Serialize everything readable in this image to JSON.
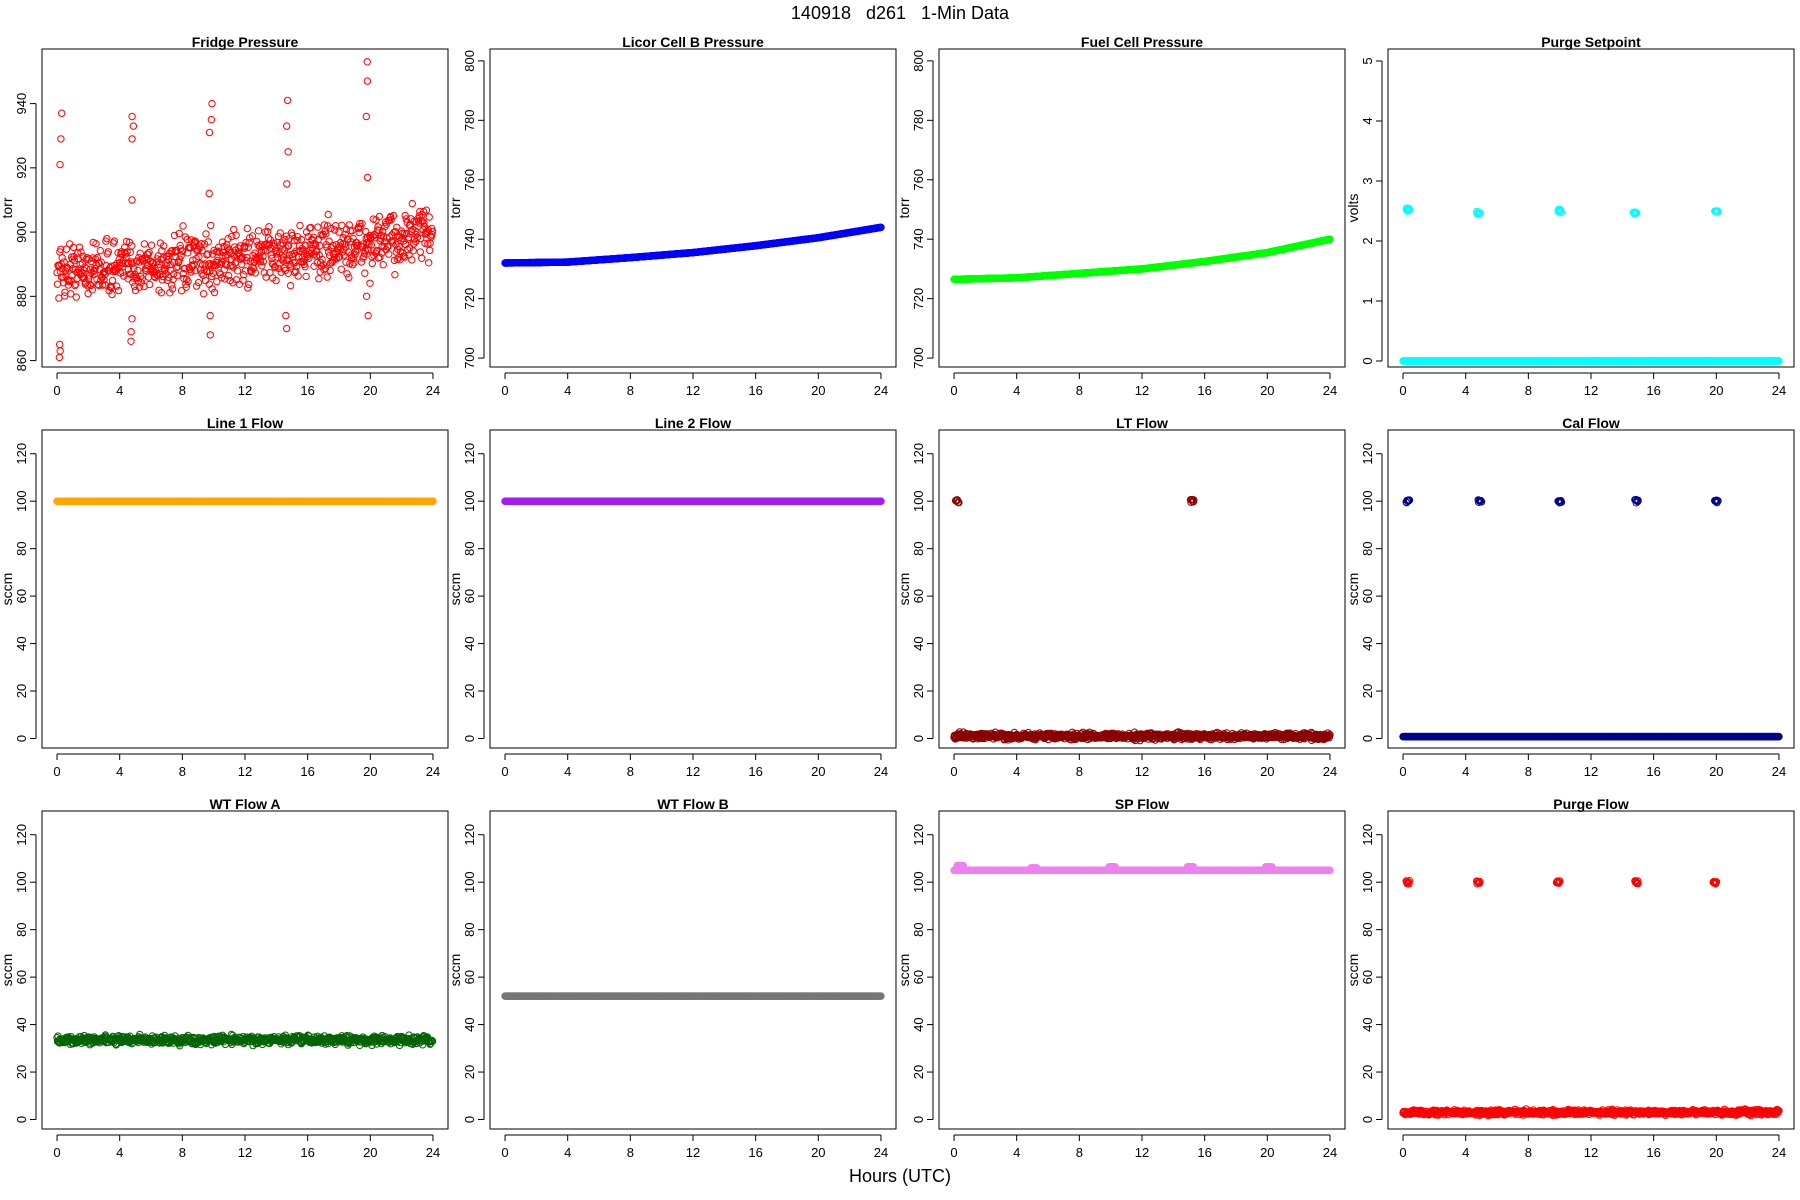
{
  "figure": {
    "title": "140918   d261   1-Min Data",
    "xlabel": "Hours (UTC)"
  },
  "chart_data": [
    {
      "type": "scatter",
      "title": "Fridge Pressure",
      "ylabel": "torr",
      "color": "#ff0000",
      "xlim": [
        0,
        24
      ],
      "ylim": [
        858,
        957
      ],
      "xticks": [
        0,
        4,
        8,
        12,
        16,
        20,
        24
      ],
      "yticks": [
        860,
        880,
        900,
        920,
        940
      ],
      "series": [
        {
          "pattern": "noisy",
          "base": [
            [
              0,
              888
            ],
            [
              4,
              889
            ],
            [
              8,
              890
            ],
            [
              12,
              892
            ],
            [
              16,
              894
            ],
            [
              20,
              896
            ],
            [
              24,
              900
            ]
          ],
          "noise": 6,
          "spikes": [
            {
              "x": 0.2,
              "vals": [
                921,
                929,
                937,
                861,
                863,
                865
              ]
            },
            {
              "x": 4.8,
              "vals": [
                929,
                933,
                936,
                866,
                869,
                873,
                910
              ]
            },
            {
              "x": 9.8,
              "vals": [
                931,
                935,
                940,
                868,
                874,
                912
              ]
            },
            {
              "x": 14.7,
              "vals": [
                925,
                933,
                941,
                870,
                874,
                915
              ]
            },
            {
              "x": 19.8,
              "vals": [
                917,
                936,
                947,
                953,
                874,
                880
              ]
            }
          ]
        }
      ]
    },
    {
      "type": "scatter",
      "title": "Licor Cell B Pressure",
      "ylabel": "torr",
      "color": "#0000ff",
      "xlim": [
        0,
        24
      ],
      "ylim": [
        697,
        804
      ],
      "xticks": [
        0,
        4,
        8,
        12,
        16,
        20,
        24
      ],
      "yticks": [
        700,
        720,
        740,
        760,
        780,
        800
      ],
      "series": [
        {
          "pattern": "smooth",
          "points": [
            [
              0,
              732
            ],
            [
              4,
              732.3
            ],
            [
              8,
              733.8
            ],
            [
              12,
              735.5
            ],
            [
              16,
              737.8
            ],
            [
              20,
              740.5
            ],
            [
              24,
              744
            ]
          ]
        }
      ]
    },
    {
      "type": "scatter",
      "title": "Fuel Cell Pressure",
      "ylabel": "torr",
      "color": "#00ff00",
      "xlim": [
        0,
        24
      ],
      "ylim": [
        697,
        804
      ],
      "xticks": [
        0,
        4,
        8,
        12,
        16,
        20,
        24
      ],
      "yticks": [
        700,
        720,
        740,
        760,
        780,
        800
      ],
      "series": [
        {
          "pattern": "smooth",
          "points": [
            [
              0,
              726.5
            ],
            [
              4,
              727
            ],
            [
              8,
              728.5
            ],
            [
              12,
              730
            ],
            [
              16,
              732.5
            ],
            [
              20,
              735.5
            ],
            [
              24,
              740
            ]
          ]
        }
      ]
    },
    {
      "type": "scatter",
      "title": "Purge Setpoint",
      "ylabel": "volts",
      "color": "#00ffff",
      "xlim": [
        0,
        24
      ],
      "ylim": [
        -0.1,
        5.2
      ],
      "xticks": [
        0,
        4,
        8,
        12,
        16,
        20,
        24
      ],
      "yticks": [
        0,
        1,
        2,
        3,
        4,
        5
      ],
      "series": [
        {
          "pattern": "baseline",
          "value": 0,
          "bursts": [
            {
              "x": 0.2,
              "y": 2.52
            },
            {
              "x": 4.7,
              "y": 2.47
            },
            {
              "x": 9.9,
              "y": 2.5
            },
            {
              "x": 14.7,
              "y": 2.46
            },
            {
              "x": 19.9,
              "y": 2.48
            }
          ]
        }
      ]
    },
    {
      "type": "scatter",
      "title": "Line 1 Flow",
      "ylabel": "sccm",
      "color": "#ffa500",
      "xlim": [
        0,
        24
      ],
      "ylim": [
        -4,
        130
      ],
      "xticks": [
        0,
        4,
        8,
        12,
        16,
        20,
        24
      ],
      "yticks": [
        0,
        20,
        40,
        60,
        80,
        100,
        120
      ],
      "series": [
        {
          "pattern": "flat",
          "value": 100
        }
      ]
    },
    {
      "type": "scatter",
      "title": "Line 2 Flow",
      "ylabel": "sccm",
      "color": "#a020f0",
      "xlim": [
        0,
        24
      ],
      "ylim": [
        -4,
        130
      ],
      "xticks": [
        0,
        4,
        8,
        12,
        16,
        20,
        24
      ],
      "yticks": [
        0,
        20,
        40,
        60,
        80,
        100,
        120
      ],
      "series": [
        {
          "pattern": "flat",
          "value": 100
        }
      ]
    },
    {
      "type": "scatter",
      "title": "LT Flow",
      "ylabel": "sccm",
      "color": "#8b0000",
      "xlim": [
        0,
        24
      ],
      "ylim": [
        -4,
        130
      ],
      "xticks": [
        0,
        4,
        8,
        12,
        16,
        20,
        24
      ],
      "yticks": [
        0,
        20,
        40,
        60,
        80,
        100,
        120
      ],
      "series": [
        {
          "pattern": "baseline",
          "value": 1,
          "noise": 1.5,
          "bursts": [
            {
              "x": 0.1,
              "y": 100
            },
            {
              "x": 15.1,
              "y": 100
            }
          ]
        }
      ]
    },
    {
      "type": "scatter",
      "title": "Cal Flow",
      "ylabel": "sccm",
      "color": "#00008b",
      "xlim": [
        0,
        24
      ],
      "ylim": [
        -4,
        130
      ],
      "xticks": [
        0,
        4,
        8,
        12,
        16,
        20,
        24
      ],
      "yticks": [
        0,
        20,
        40,
        60,
        80,
        100,
        120
      ],
      "series": [
        {
          "pattern": "baseline",
          "value": 0.8,
          "bursts": [
            {
              "x": 0.2,
              "y": 100
            },
            {
              "x": 4.8,
              "y": 100
            },
            {
              "x": 9.9,
              "y": 100
            },
            {
              "x": 14.8,
              "y": 100
            },
            {
              "x": 19.9,
              "y": 100
            }
          ]
        }
      ]
    },
    {
      "type": "scatter",
      "title": "WT Flow A",
      "ylabel": "sccm",
      "color": "#006400",
      "xlim": [
        0,
        24
      ],
      "ylim": [
        -4,
        130
      ],
      "xticks": [
        0,
        4,
        8,
        12,
        16,
        20,
        24
      ],
      "yticks": [
        0,
        20,
        40,
        60,
        80,
        100,
        120
      ],
      "series": [
        {
          "pattern": "noisy",
          "base": [
            [
              0,
              33.5
            ],
            [
              24,
              33.5
            ]
          ],
          "noise": 1.2,
          "spikes": []
        }
      ]
    },
    {
      "type": "scatter",
      "title": "WT Flow B",
      "ylabel": "sccm",
      "color": "#777777",
      "xlim": [
        0,
        24
      ],
      "ylim": [
        -4,
        130
      ],
      "xticks": [
        0,
        4,
        8,
        12,
        16,
        20,
        24
      ],
      "yticks": [
        0,
        20,
        40,
        60,
        80,
        100,
        120
      ],
      "series": [
        {
          "pattern": "flat",
          "value": 52
        }
      ]
    },
    {
      "type": "scatter",
      "title": "SP Flow",
      "ylabel": "sccm",
      "color": "#ee82ee",
      "xlim": [
        0,
        24
      ],
      "ylim": [
        -4,
        130
      ],
      "xticks": [
        0,
        4,
        8,
        12,
        16,
        20,
        24
      ],
      "yticks": [
        0,
        20,
        40,
        60,
        80,
        100,
        120
      ],
      "series": [
        {
          "pattern": "smooth",
          "points": [
            [
              0,
              105
            ],
            [
              24,
              105
            ]
          ],
          "bumps": [
            {
              "x": 0.2,
              "y": 107
            },
            {
              "x": 4.9,
              "y": 106
            },
            {
              "x": 9.9,
              "y": 106.5
            },
            {
              "x": 14.9,
              "y": 106.5
            },
            {
              "x": 19.9,
              "y": 106.5
            }
          ]
        }
      ]
    },
    {
      "type": "scatter",
      "title": "Purge Flow",
      "ylabel": "sccm",
      "color": "#ff0000",
      "xlim": [
        0,
        24
      ],
      "ylim": [
        -4,
        130
      ],
      "xticks": [
        0,
        4,
        8,
        12,
        16,
        20,
        24
      ],
      "yticks": [
        0,
        20,
        40,
        60,
        80,
        100,
        120
      ],
      "series": [
        {
          "pattern": "baseline",
          "value": 3,
          "noise": 1.2,
          "bursts": [
            {
              "x": 0.2,
              "y": 100
            },
            {
              "x": 4.7,
              "y": 100
            },
            {
              "x": 9.8,
              "y": 100
            },
            {
              "x": 14.8,
              "y": 100
            },
            {
              "x": 19.8,
              "y": 100
            }
          ]
        }
      ]
    }
  ]
}
